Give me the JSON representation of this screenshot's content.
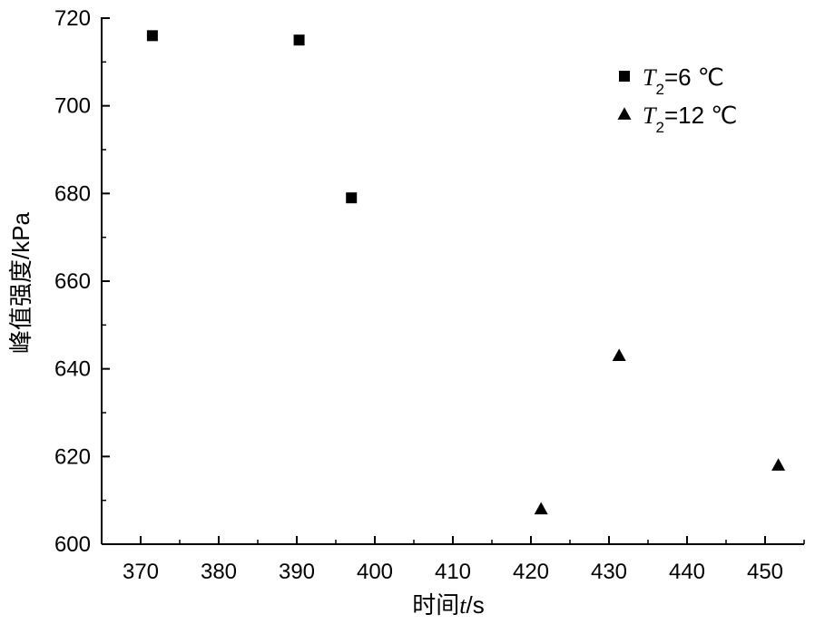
{
  "chart_data": {
    "type": "scatter",
    "xlabel": {
      "prefix": "时间",
      "var": "t",
      "suffix": "/s"
    },
    "ylabel": "峰值强度/kPa",
    "xlim": [
      365,
      455
    ],
    "ylim": [
      600,
      720
    ],
    "xticks": [
      370,
      380,
      390,
      400,
      410,
      420,
      430,
      440,
      450
    ],
    "yticks": [
      600,
      620,
      640,
      660,
      680,
      700,
      720
    ],
    "legend_position": "top-right",
    "series": [
      {
        "name": "T2=6 ℃",
        "label": {
          "var": "T",
          "sub": "2",
          "rest": "=6 ℃"
        },
        "marker": "square",
        "color": "#000000",
        "points": [
          [
            371.5,
            716
          ],
          [
            390.3,
            715
          ],
          [
            397.0,
            679
          ]
        ]
      },
      {
        "name": "T2=12 ℃",
        "label": {
          "var": "T",
          "sub": "2",
          "rest": "=12 ℃"
        },
        "marker": "triangle",
        "color": "#000000",
        "points": [
          [
            421.3,
            608
          ],
          [
            431.3,
            643
          ],
          [
            451.7,
            618
          ]
        ]
      }
    ]
  }
}
